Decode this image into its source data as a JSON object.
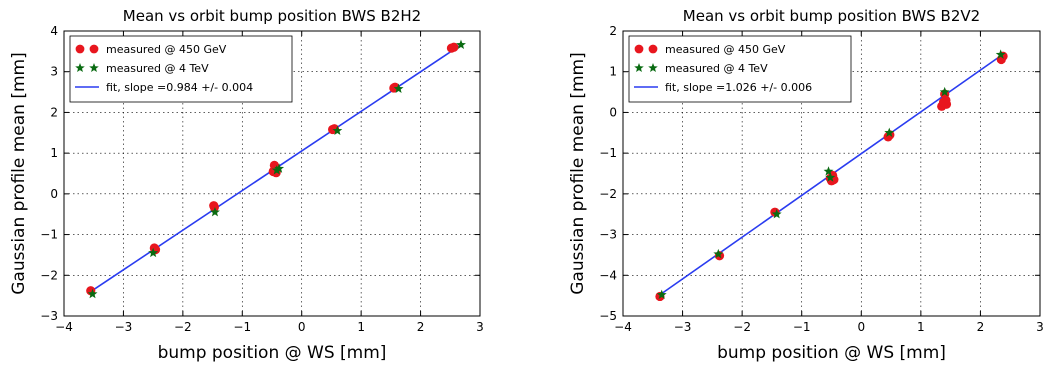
{
  "chart_data": [
    {
      "type": "scatter",
      "title": "Mean vs orbit bump position BWS B2H2",
      "xlabel": "bump position @ WS [mm]",
      "ylabel": "Gaussian profile mean [mm]",
      "xlim": [
        -4,
        3
      ],
      "ylim": [
        -3,
        4
      ],
      "xticks": [
        -4,
        -3,
        -2,
        -1,
        0,
        1,
        2,
        3
      ],
      "yticks": [
        -3,
        -2,
        -1,
        0,
        1,
        2,
        3,
        4
      ],
      "xtick_labels": [
        "−4",
        "−3",
        "−2",
        "−1",
        "0",
        "1",
        "2",
        "3"
      ],
      "ytick_labels": [
        "−3",
        "−2",
        "−1",
        "0",
        "1",
        "2",
        "3",
        "4"
      ],
      "grid": true,
      "legend_position": "top-left",
      "series": [
        {
          "name": "measured @ 450 GeV",
          "marker": "circle",
          "color": "#e8161e",
          "points": [
            [
              -3.55,
              -2.38
            ],
            [
              -2.48,
              -1.33
            ],
            [
              -2.46,
              -1.37
            ],
            [
              -1.48,
              -0.29
            ],
            [
              -1.47,
              -0.33
            ],
            [
              -0.48,
              0.55
            ],
            [
              -0.46,
              0.7
            ],
            [
              -0.45,
              0.6
            ],
            [
              -0.44,
              0.65
            ],
            [
              -0.43,
              0.52
            ],
            [
              0.52,
              1.58
            ],
            [
              0.55,
              1.6
            ],
            [
              1.55,
              2.6
            ],
            [
              1.57,
              2.62
            ],
            [
              2.52,
              3.58
            ],
            [
              2.56,
              3.6
            ]
          ]
        },
        {
          "name": "measured @ 4 TeV",
          "marker": "star",
          "color": "#0a6b12",
          "points": [
            [
              -3.52,
              -2.46
            ],
            [
              -2.5,
              -1.45
            ],
            [
              -1.46,
              -0.45
            ],
            [
              -0.42,
              0.58
            ],
            [
              -0.38,
              0.62
            ],
            [
              0.6,
              1.55
            ],
            [
              1.63,
              2.58
            ],
            [
              2.68,
              3.66
            ]
          ]
        }
      ],
      "fit": {
        "name": "fit, slope =0.984 +/- 0.004",
        "color": "#2a3cf0",
        "slope": 0.984,
        "x": [
          -3.55,
          2.7
        ],
        "y": [
          -2.4,
          3.68
        ]
      }
    },
    {
      "type": "scatter",
      "title": "Mean vs orbit bump position BWS B2V2",
      "xlabel": "bump position @ WS [mm]",
      "ylabel": "Gaussian profile mean [mm]",
      "xlim": [
        -4,
        3
      ],
      "ylim": [
        -5,
        2
      ],
      "xticks": [
        -4,
        -3,
        -2,
        -1,
        0,
        1,
        2,
        3
      ],
      "yticks": [
        -5,
        -4,
        -3,
        -2,
        -1,
        0,
        1,
        2
      ],
      "xtick_labels": [
        "−4",
        "−3",
        "−2",
        "−1",
        "0",
        "1",
        "2",
        "3"
      ],
      "ytick_labels": [
        "−5",
        "−4",
        "−3",
        "−2",
        "−1",
        "0",
        "1",
        "2"
      ],
      "grid": true,
      "legend_position": "top-left",
      "series": [
        {
          "name": "measured @ 450 GeV",
          "marker": "circle",
          "color": "#e8161e",
          "points": [
            [
              -3.38,
              -4.52
            ],
            [
              -2.38,
              -3.52
            ],
            [
              -1.45,
              -2.45
            ],
            [
              -0.52,
              -1.62
            ],
            [
              -0.5,
              -1.68
            ],
            [
              -0.48,
              -1.55
            ],
            [
              -0.46,
              -1.65
            ],
            [
              0.45,
              -0.6
            ],
            [
              0.48,
              -0.55
            ],
            [
              1.35,
              0.15
            ],
            [
              1.38,
              0.25
            ],
            [
              1.4,
              0.45
            ],
            [
              1.42,
              0.3
            ],
            [
              1.43,
              0.2
            ],
            [
              2.35,
              1.3
            ],
            [
              2.38,
              1.38
            ]
          ]
        },
        {
          "name": "measured @ 4 TeV",
          "marker": "star",
          "color": "#0a6b12",
          "points": [
            [
              -3.35,
              -4.48
            ],
            [
              -2.4,
              -3.48
            ],
            [
              -1.42,
              -2.5
            ],
            [
              -0.55,
              -1.45
            ],
            [
              -0.52,
              -1.6
            ],
            [
              0.47,
              -0.5
            ],
            [
              1.4,
              0.5
            ],
            [
              2.34,
              1.42
            ]
          ]
        }
      ],
      "fit": {
        "name": "fit, slope =1.026 +/- 0.006",
        "color": "#2a3cf0",
        "slope": 1.026,
        "x": [
          -3.4,
          2.4
        ],
        "y": [
          -4.5,
          1.45
        ]
      }
    }
  ]
}
